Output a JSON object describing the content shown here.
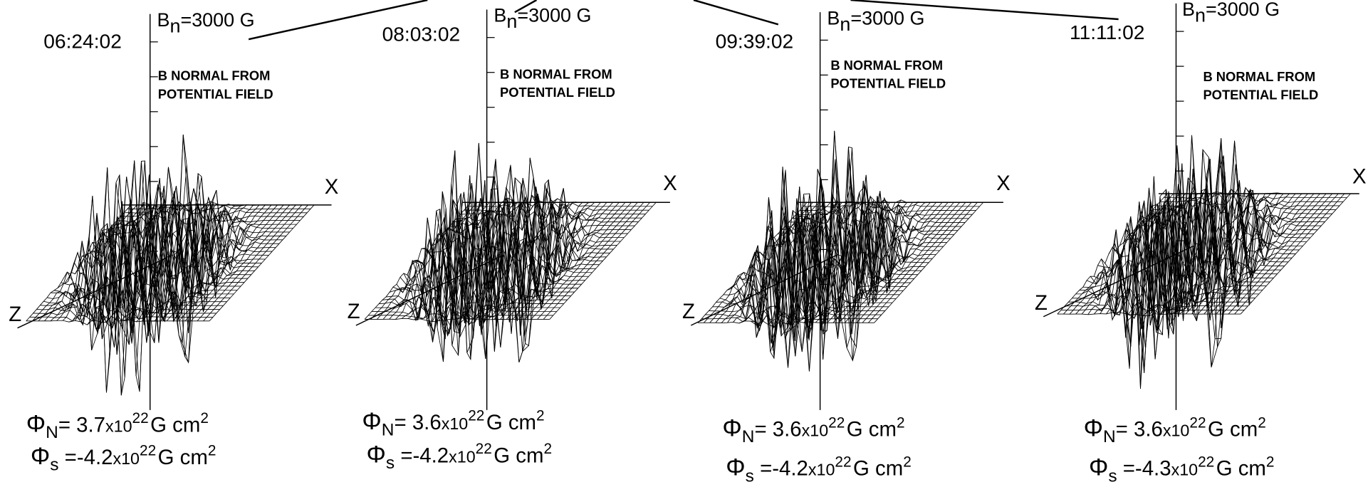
{
  "panels": [
    {
      "time": "06:24:02",
      "field": {
        "symbol": "B",
        "sub": "n",
        "text": "=3000 G"
      },
      "note": [
        "B NORMAL FROM",
        "POTENTIAL FIELD"
      ],
      "x_axis": "X",
      "z_axis": "Z",
      "flux_n": {
        "symbol": "Φ",
        "sub": "N",
        "text": "= 3.7",
        "base": "x10",
        "exp": "22",
        "unit": "G cm",
        "unit_exp": "2"
      },
      "flux_s": {
        "symbol": "Φ",
        "sub": "s",
        "text": " =-4.2",
        "base": "x10",
        "exp": "22",
        "unit": "G cm",
        "unit_exp": "2"
      }
    },
    {
      "time": "08:03:02",
      "field": {
        "symbol": "B",
        "sub": "n",
        "text": "=3000 G"
      },
      "note": [
        "B NORMAL FROM",
        "POTENTIAL FIELD"
      ],
      "x_axis": "X",
      "z_axis": "Z",
      "flux_n": {
        "symbol": "Φ",
        "sub": "N",
        "text": "= 3.6",
        "base": "x10",
        "exp": "22",
        "unit": "G cm",
        "unit_exp": "2"
      },
      "flux_s": {
        "symbol": "Φ",
        "sub": "s",
        "text": " =-4.2",
        "base": "x10",
        "exp": "22",
        "unit": "G cm",
        "unit_exp": "2"
      }
    },
    {
      "time": "09:39:02",
      "field": {
        "symbol": "B",
        "sub": "n",
        "text": "=3000 G"
      },
      "note": [
        "B NORMAL FROM",
        "POTENTIAL FIELD"
      ],
      "x_axis": "X",
      "z_axis": "Z",
      "flux_n": {
        "symbol": "Φ",
        "sub": "N",
        "text": "= 3.6",
        "base": "x10",
        "exp": "22",
        "unit": "G cm",
        "unit_exp": "2"
      },
      "flux_s": {
        "symbol": "Φ",
        "sub": "s",
        "text": " =-4.2",
        "base": "x10",
        "exp": "22",
        "unit": "G cm",
        "unit_exp": "2"
      }
    },
    {
      "time": "11:11:02",
      "field": {
        "symbol": "B",
        "sub": "n",
        "text": "=3000 G"
      },
      "note": [
        "B NORMAL FROM",
        "POTENTIAL FIELD"
      ],
      "x_axis": "X",
      "z_axis": "Z",
      "flux_n": {
        "symbol": "Φ",
        "sub": "N",
        "text": "= 3.6",
        "base": "x10",
        "exp": "22",
        "unit": "G cm",
        "unit_exp": "2"
      },
      "flux_s": {
        "symbol": "Φ",
        "sub": "s",
        "text": " =-4.3",
        "base": "x10",
        "exp": "22",
        "unit": "G cm",
        "unit_exp": "2"
      }
    }
  ]
}
